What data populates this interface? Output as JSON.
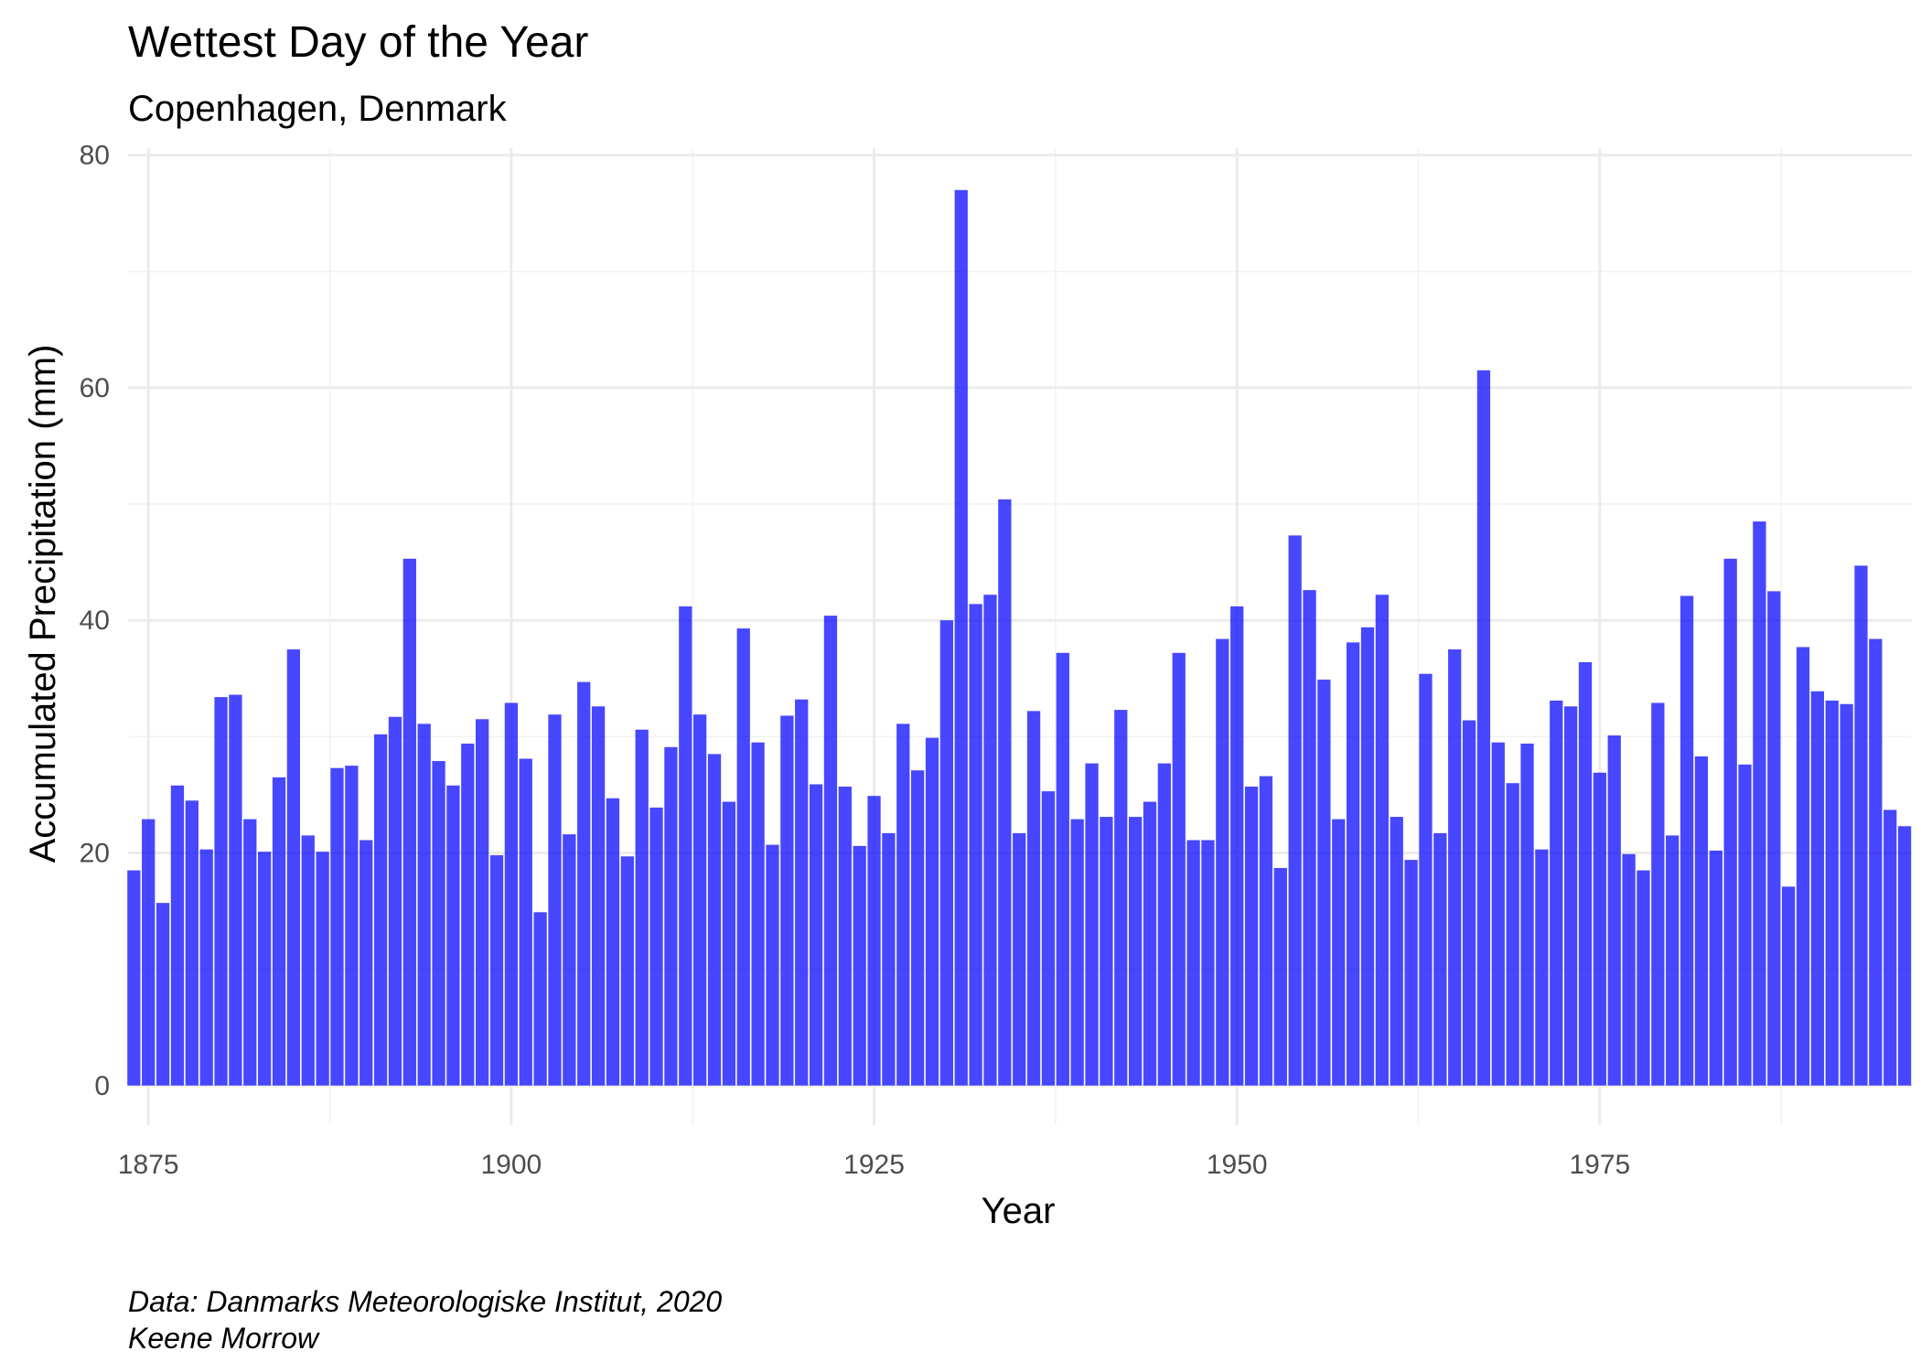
{
  "chart_data": {
    "type": "bar",
    "title": "Wettest Day of the Year",
    "subtitle": "Copenhagen, Denmark",
    "xlabel": "Year",
    "ylabel": "Accumulated Precipitation (mm)",
    "caption_lines": [
      "Data: Danmarks Meteorologiske Institut, 2020",
      "Keene Morrow"
    ],
    "bar_color": "#0000ff",
    "bar_opacity": 0.72,
    "grid": true,
    "xlim": [
      1873.6,
      1996.5
    ],
    "ylim": [
      -3.4,
      80.6
    ],
    "x_ticks": [
      1875,
      1900,
      1925,
      1950,
      1975
    ],
    "y_ticks": [
      0,
      20,
      40,
      60,
      80
    ],
    "years": [
      1874,
      1875,
      1876,
      1877,
      1878,
      1879,
      1880,
      1881,
      1882,
      1883,
      1884,
      1885,
      1886,
      1887,
      1888,
      1889,
      1890,
      1891,
      1892,
      1893,
      1894,
      1895,
      1896,
      1897,
      1898,
      1899,
      1900,
      1901,
      1902,
      1903,
      1904,
      1905,
      1906,
      1907,
      1908,
      1909,
      1910,
      1911,
      1912,
      1913,
      1914,
      1915,
      1916,
      1917,
      1918,
      1919,
      1920,
      1921,
      1922,
      1923,
      1924,
      1925,
      1926,
      1927,
      1928,
      1929,
      1930,
      1931,
      1932,
      1933,
      1934,
      1935,
      1936,
      1937,
      1938,
      1939,
      1940,
      1941,
      1942,
      1943,
      1944,
      1945,
      1946,
      1947,
      1948,
      1949,
      1950,
      1951,
      1952,
      1953,
      1954,
      1955,
      1956,
      1957,
      1958,
      1959,
      1960,
      1961,
      1962,
      1963,
      1964,
      1965,
      1966,
      1967,
      1968,
      1969,
      1970,
      1971,
      1972,
      1973,
      1974,
      1975,
      1976,
      1977,
      1978,
      1979,
      1980,
      1981,
      1982,
      1983,
      1984,
      1985,
      1986,
      1987,
      1988,
      1989,
      1990,
      1991,
      1992,
      1993,
      1994,
      1995,
      1996
    ],
    "values": [
      18.5,
      22.9,
      15.7,
      25.8,
      24.5,
      20.3,
      33.4,
      33.6,
      22.9,
      20.1,
      26.5,
      37.5,
      21.5,
      20.1,
      27.3,
      27.5,
      21.1,
      30.2,
      31.7,
      45.3,
      31.1,
      27.9,
      25.8,
      29.4,
      31.5,
      19.8,
      32.9,
      28.1,
      14.9,
      31.9,
      21.6,
      34.7,
      32.6,
      24.7,
      19.7,
      30.6,
      23.9,
      29.1,
      41.2,
      31.9,
      28.5,
      24.4,
      39.3,
      29.5,
      20.7,
      31.8,
      33.2,
      25.9,
      40.4,
      25.7,
      20.6,
      24.9,
      21.7,
      31.1,
      27.1,
      29.9,
      40.0,
      77.0,
      41.4,
      42.2,
      50.4,
      21.7,
      32.2,
      25.3,
      37.2,
      22.9,
      27.7,
      23.1,
      32.3,
      23.1,
      24.4,
      27.7,
      37.2,
      21.1,
      21.1,
      38.4,
      41.2,
      25.7,
      26.6,
      18.7,
      47.3,
      42.6,
      34.9,
      22.9,
      38.1,
      39.4,
      42.2,
      23.1,
      19.4,
      35.4,
      21.7,
      37.5,
      31.4,
      61.5,
      29.5,
      26.0,
      29.4,
      20.3,
      33.1,
      32.6,
      36.4,
      26.9,
      30.1,
      19.9,
      18.5,
      32.9,
      21.5,
      42.1,
      28.3,
      20.2,
      45.3,
      27.6,
      48.5,
      42.5,
      17.1,
      37.7,
      33.9,
      33.1,
      32.8,
      44.7,
      38.4,
      23.7,
      22.3
    ]
  }
}
